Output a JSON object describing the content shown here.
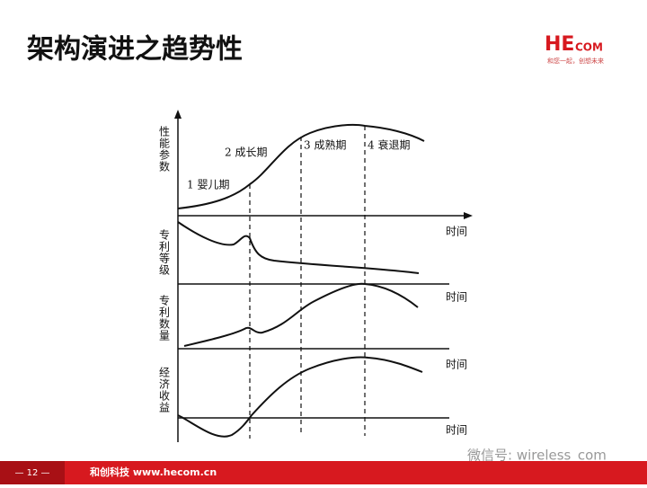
{
  "header": {
    "title": "架构演进之趋势性",
    "logo_main": "HE",
    "logo_small": "COM",
    "tagline": "和您一起，创想未来"
  },
  "diagram": {
    "panel_labels": [
      "性能参数",
      "专利等级",
      "专利数量",
      "经济收益"
    ],
    "stages": [
      "1 婴儿期",
      "2 成长期",
      "3 成熟期",
      "4 衰退期"
    ],
    "time_labels": [
      "时间",
      "时间",
      "时间",
      "时间"
    ]
  },
  "footer": {
    "page": "— 12 —",
    "company": "和创科技 www.hecom.cn",
    "watermark": "微信号: wireless_com"
  }
}
